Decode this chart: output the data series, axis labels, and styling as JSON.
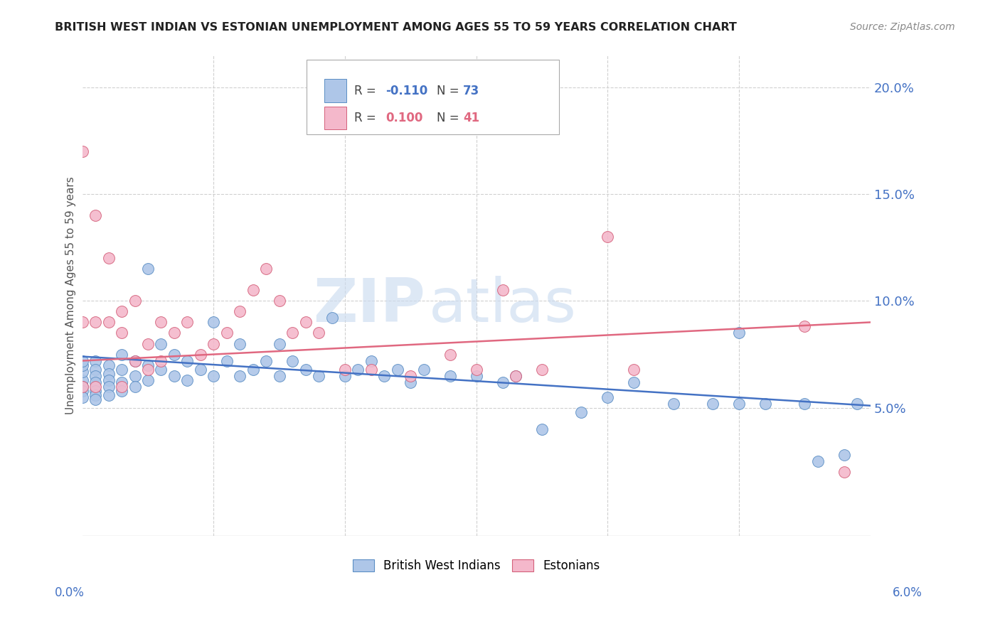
{
  "title": "BRITISH WEST INDIAN VS ESTONIAN UNEMPLOYMENT AMONG AGES 55 TO 59 YEARS CORRELATION CHART",
  "source": "Source: ZipAtlas.com",
  "ylabel": "Unemployment Among Ages 55 to 59 years",
  "x_min": 0.0,
  "x_max": 0.06,
  "y_min": -0.01,
  "y_max": 0.215,
  "bwi_color": "#aec6e8",
  "bwi_edge_color": "#5b8ec4",
  "bwi_line_color": "#4472c4",
  "est_color": "#f4b8cb",
  "est_edge_color": "#d4607a",
  "est_line_color": "#e06880",
  "bwi_R": "-0.110",
  "bwi_N": "73",
  "est_R": "0.100",
  "est_N": "41",
  "legend_bwi_label": "British West Indians",
  "legend_est_label": "Estonians",
  "bwi_x": [
    0.0,
    0.0,
    0.0,
    0.0,
    0.0,
    0.0,
    0.0,
    0.001,
    0.001,
    0.001,
    0.001,
    0.001,
    0.001,
    0.001,
    0.002,
    0.002,
    0.002,
    0.002,
    0.002,
    0.003,
    0.003,
    0.003,
    0.003,
    0.004,
    0.004,
    0.004,
    0.005,
    0.005,
    0.005,
    0.006,
    0.006,
    0.007,
    0.007,
    0.008,
    0.008,
    0.009,
    0.01,
    0.01,
    0.011,
    0.012,
    0.012,
    0.013,
    0.014,
    0.015,
    0.015,
    0.016,
    0.017,
    0.018,
    0.019,
    0.02,
    0.021,
    0.022,
    0.023,
    0.024,
    0.025,
    0.026,
    0.028,
    0.03,
    0.032,
    0.033,
    0.035,
    0.038,
    0.04,
    0.042,
    0.045,
    0.048,
    0.05,
    0.05,
    0.052,
    0.055,
    0.056,
    0.058,
    0.059
  ],
  "bwi_y": [
    0.063,
    0.067,
    0.07,
    0.072,
    0.06,
    0.058,
    0.055,
    0.072,
    0.068,
    0.065,
    0.062,
    0.058,
    0.056,
    0.054,
    0.07,
    0.066,
    0.063,
    0.06,
    0.056,
    0.075,
    0.068,
    0.062,
    0.058,
    0.072,
    0.065,
    0.06,
    0.115,
    0.07,
    0.063,
    0.08,
    0.068,
    0.075,
    0.065,
    0.072,
    0.063,
    0.068,
    0.09,
    0.065,
    0.072,
    0.08,
    0.065,
    0.068,
    0.072,
    0.08,
    0.065,
    0.072,
    0.068,
    0.065,
    0.092,
    0.065,
    0.068,
    0.072,
    0.065,
    0.068,
    0.062,
    0.068,
    0.065,
    0.065,
    0.062,
    0.065,
    0.04,
    0.048,
    0.055,
    0.062,
    0.052,
    0.052,
    0.052,
    0.085,
    0.052,
    0.052,
    0.025,
    0.028,
    0.052
  ],
  "est_x": [
    0.0,
    0.0,
    0.0,
    0.001,
    0.001,
    0.001,
    0.002,
    0.002,
    0.003,
    0.003,
    0.003,
    0.004,
    0.004,
    0.005,
    0.005,
    0.006,
    0.006,
    0.007,
    0.008,
    0.009,
    0.01,
    0.011,
    0.012,
    0.013,
    0.014,
    0.015,
    0.016,
    0.017,
    0.018,
    0.02,
    0.022,
    0.025,
    0.028,
    0.03,
    0.032,
    0.033,
    0.035,
    0.04,
    0.042,
    0.055,
    0.058
  ],
  "est_y": [
    0.17,
    0.09,
    0.06,
    0.14,
    0.09,
    0.06,
    0.12,
    0.09,
    0.095,
    0.085,
    0.06,
    0.1,
    0.072,
    0.08,
    0.068,
    0.09,
    0.072,
    0.085,
    0.09,
    0.075,
    0.08,
    0.085,
    0.095,
    0.105,
    0.115,
    0.1,
    0.085,
    0.09,
    0.085,
    0.068,
    0.068,
    0.065,
    0.075,
    0.068,
    0.105,
    0.065,
    0.068,
    0.13,
    0.068,
    0.088,
    0.02
  ],
  "bwi_trend_x": [
    0.0,
    0.06
  ],
  "bwi_trend_y": [
    0.074,
    0.051
  ],
  "est_trend_x": [
    0.0,
    0.06
  ],
  "est_trend_y": [
    0.072,
    0.09
  ]
}
